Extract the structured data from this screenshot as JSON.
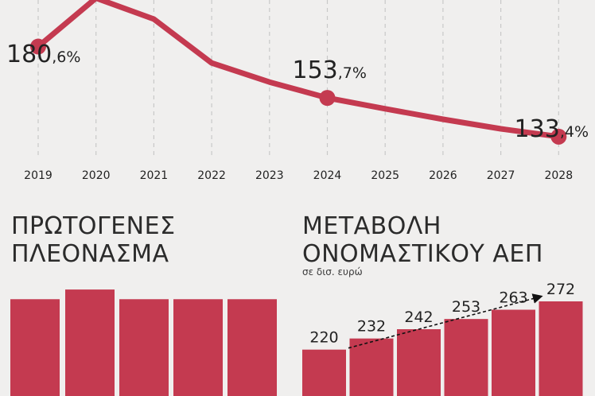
{
  "colors": {
    "accent": "#c43a50",
    "text": "#222222",
    "background": "#f0efee",
    "grid": "#c8c8c8"
  },
  "chart_data": [
    {
      "type": "line",
      "x": [
        "2019",
        "2020",
        "2021",
        "2022",
        "2023",
        "2024",
        "2025",
        "2026",
        "2027",
        "2028"
      ],
      "series": [
        {
          "values": [
            180.6,
            206.0,
            195.0,
            172.0,
            162.0,
            153.7,
            148.0,
            142.5,
            137.5,
            133.4
          ]
        }
      ],
      "annotations": [
        {
          "x": "2019",
          "main": "180",
          "suffix": ",6%"
        },
        {
          "x": "2024",
          "main": "153",
          "suffix": ",7%"
        },
        {
          "x": "2028",
          "main": "133",
          "suffix": ",4%"
        }
      ],
      "ylim": [
        125,
        205
      ],
      "grid": "vertical dashed"
    },
    {
      "type": "bar",
      "title_lines": [
        "ΠΡΩΤΟΓΕΝΕΣ",
        "ΠΛΕΟΝΑΣΜΑ"
      ],
      "values": [
        4.0,
        4.4,
        4.0,
        4.0,
        4.0
      ],
      "ylim": [
        0,
        4.6
      ]
    },
    {
      "type": "bar",
      "title_lines": [
        "ΜΕΤΑΒΟΛΗ",
        "ΟΝΟΜΑΣΤΙΚΟΥ ΑΕΠ"
      ],
      "unit": "σε δισ. ευρώ",
      "values": [
        220,
        232,
        242,
        253,
        263,
        272
      ],
      "labels": [
        "220",
        "232",
        "242",
        "253",
        "263",
        "272"
      ],
      "ylim": [
        170,
        272
      ],
      "trend_arrow": true
    }
  ]
}
